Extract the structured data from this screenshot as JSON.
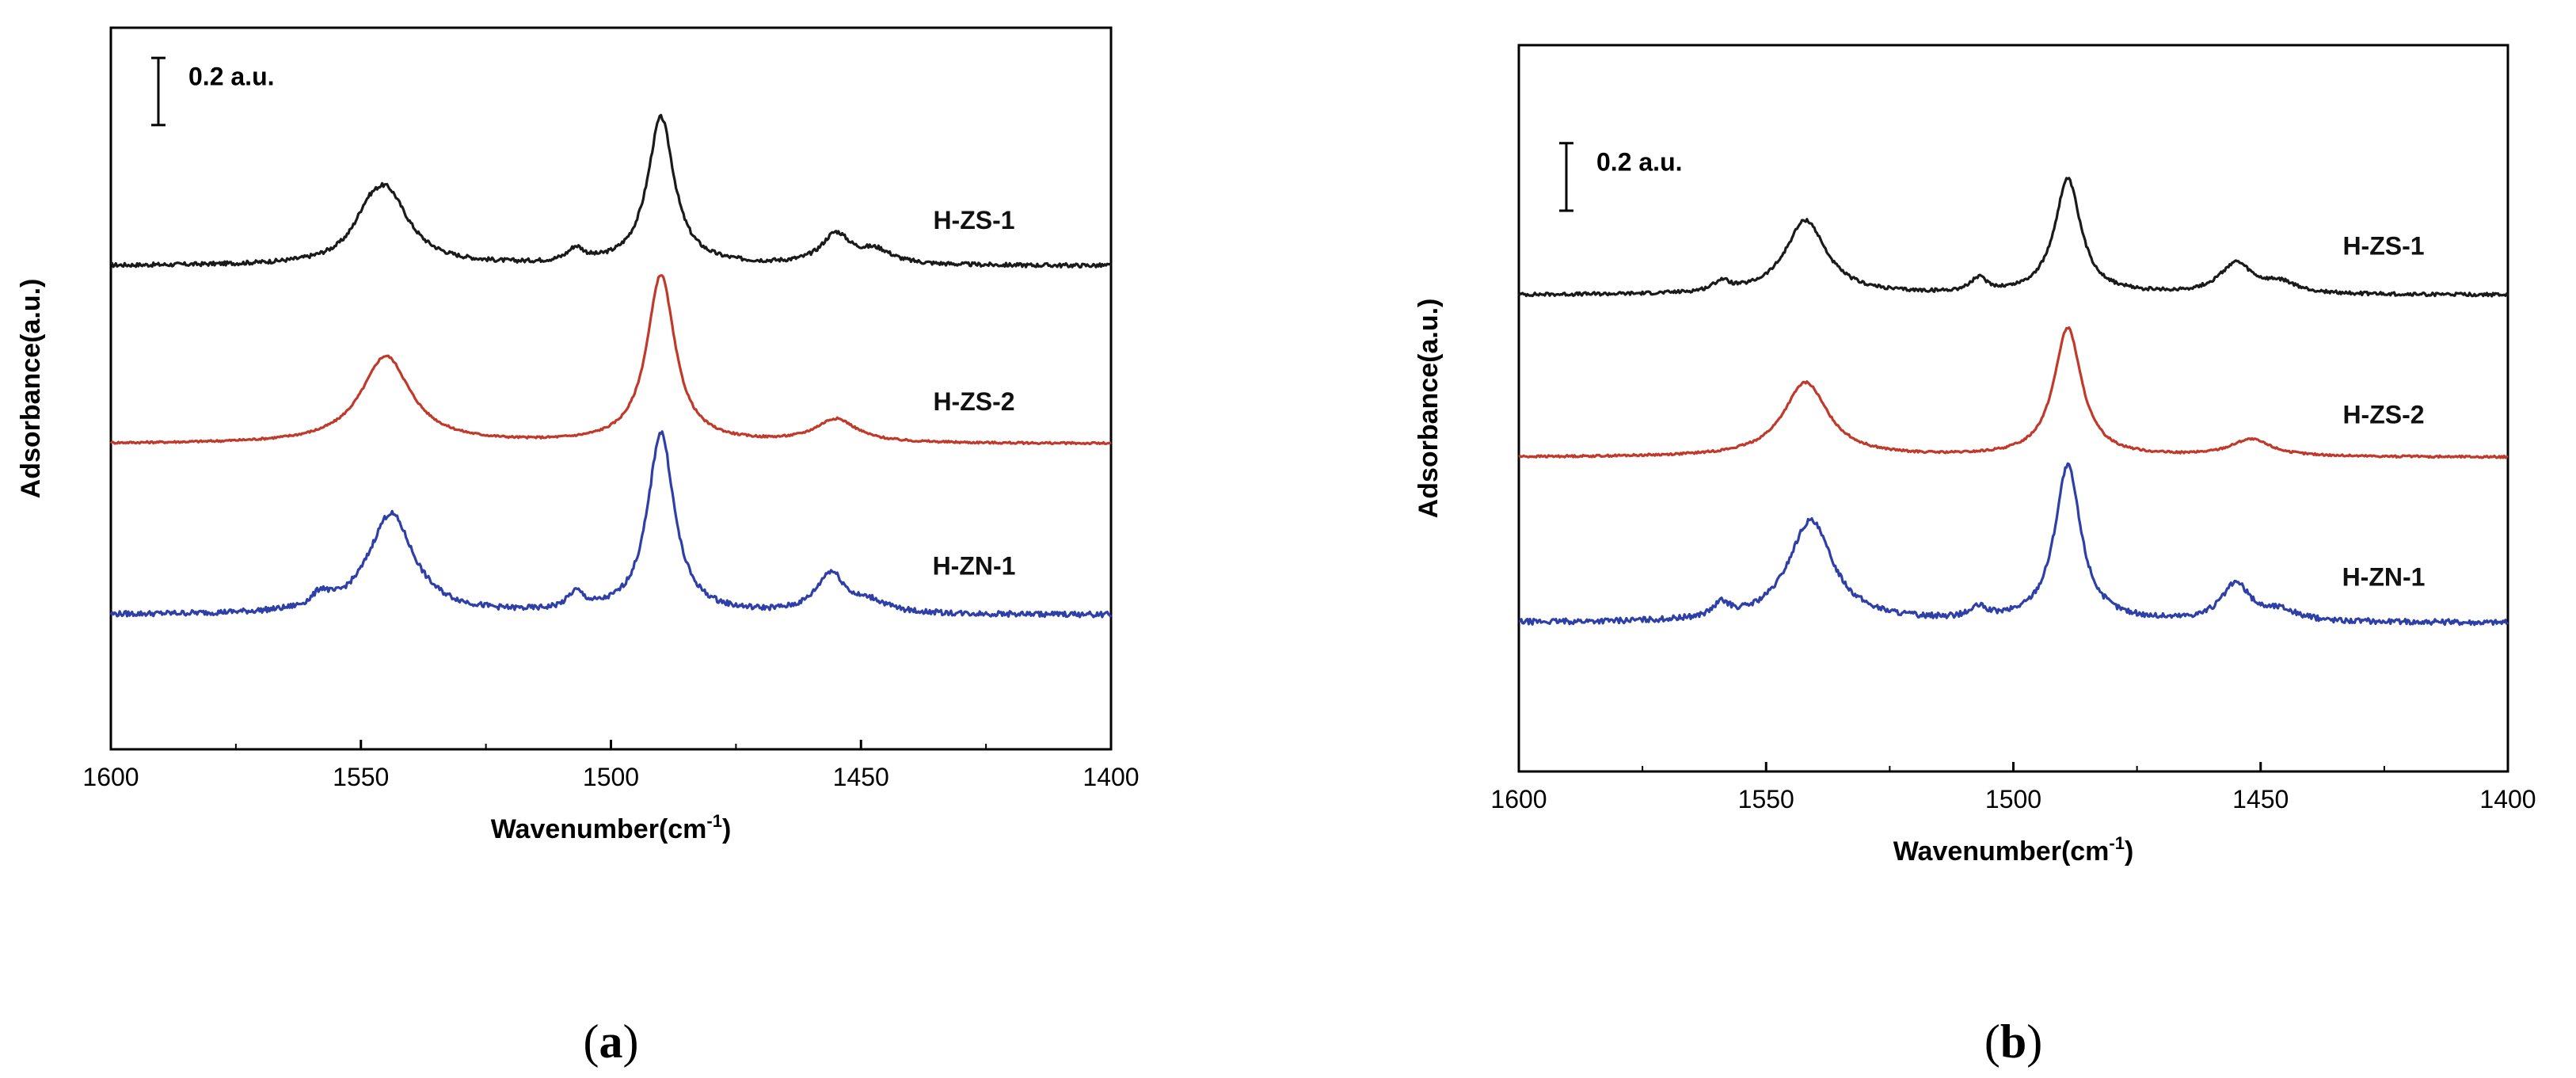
{
  "chart_data": [
    {
      "type": "line",
      "panel_label": "a",
      "caption_prefix": "(",
      "caption_suffix": ")",
      "xlabel_main": "Wavenumber(cm",
      "xlabel_sup": "-1",
      "xlabel_close": ")",
      "ylabel": "Adsorbance(a.u.)",
      "xlim": [
        1600,
        1400
      ],
      "x_ticks": [
        1600,
        1550,
        1500,
        1450,
        1400
      ],
      "x_tick_labels": [
        "1600",
        "1550",
        "1500",
        "1450",
        "1400"
      ],
      "ylim": [
        0,
        2.15
      ],
      "scale_bar": {
        "label": "0.2 a.u.",
        "size": 0.2,
        "y_bottom": 1.86
      },
      "series": [
        {
          "name": "H-ZS-1",
          "color": "#1a1a1a",
          "baseline": 1.44,
          "label_y": 1.55,
          "peaks": [
            {
              "center": 1545,
              "height": 0.22,
              "width": 5.5
            },
            {
              "center": 1549,
              "height": 0.05,
              "width": 3
            },
            {
              "center": 1507,
              "height": 0.04,
              "width": 2
            },
            {
              "center": 1490,
              "height": 0.44,
              "width": 3.2
            },
            {
              "center": 1455,
              "height": 0.09,
              "width": 3.5
            },
            {
              "center": 1447,
              "height": 0.04,
              "width": 4
            }
          ],
          "noise": 0.006
        },
        {
          "name": "H-ZS-2",
          "color": "#c0392b",
          "baseline": 0.91,
          "label_y": 1.01,
          "peaks": [
            {
              "center": 1545,
              "height": 0.26,
              "width": 6
            },
            {
              "center": 1490,
              "height": 0.5,
              "width": 3.4
            },
            {
              "center": 1455,
              "height": 0.07,
              "width": 5
            }
          ],
          "noise": 0.003
        },
        {
          "name": "H-ZN-1",
          "color": "#2e3fa8",
          "baseline": 0.4,
          "label_y": 0.52,
          "peaks": [
            {
              "center": 1544,
              "height": 0.3,
              "width": 5.5
            },
            {
              "center": 1558,
              "height": 0.04,
              "width": 2
            },
            {
              "center": 1507,
              "height": 0.05,
              "width": 2
            },
            {
              "center": 1490,
              "height": 0.54,
              "width": 3.2
            },
            {
              "center": 1456,
              "height": 0.12,
              "width": 3.5
            },
            {
              "center": 1448,
              "height": 0.03,
              "width": 4
            }
          ],
          "noise": 0.008
        }
      ]
    },
    {
      "type": "line",
      "panel_label": "b",
      "caption_prefix": "(",
      "caption_suffix": ")",
      "xlabel_main": "Wavenumber(cm",
      "xlabel_sup": "-1",
      "xlabel_close": ")",
      "ylabel": "Adsorbance(a.u.)",
      "xlim": [
        1600,
        1400
      ],
      "x_ticks": [
        1600,
        1550,
        1500,
        1450,
        1400
      ],
      "x_tick_labels": [
        "1600",
        "1550",
        "1500",
        "1450",
        "1400"
      ],
      "ylim": [
        0,
        2.15
      ],
      "scale_bar": {
        "label": "0.2 a.u.",
        "size": 0.2,
        "y_bottom": 1.66
      },
      "series": [
        {
          "name": "H-ZS-1",
          "color": "#1a1a1a",
          "baseline": 1.41,
          "label_y": 1.53,
          "peaks": [
            {
              "center": 1542,
              "height": 0.22,
              "width": 5
            },
            {
              "center": 1559,
              "height": 0.03,
              "width": 2
            },
            {
              "center": 1507,
              "height": 0.04,
              "width": 2
            },
            {
              "center": 1489,
              "height": 0.34,
              "width": 3.2
            },
            {
              "center": 1455,
              "height": 0.09,
              "width": 4
            },
            {
              "center": 1446,
              "height": 0.03,
              "width": 4
            }
          ],
          "noise": 0.005
        },
        {
          "name": "H-ZS-2",
          "color": "#c0392b",
          "baseline": 0.93,
          "label_y": 1.03,
          "peaks": [
            {
              "center": 1542,
              "height": 0.22,
              "width": 5.5
            },
            {
              "center": 1489,
              "height": 0.38,
              "width": 3.4
            },
            {
              "center": 1452,
              "height": 0.05,
              "width": 5
            }
          ],
          "noise": 0.003
        },
        {
          "name": "H-ZN-1",
          "color": "#2e3fa8",
          "baseline": 0.44,
          "label_y": 0.55,
          "peaks": [
            {
              "center": 1541,
              "height": 0.3,
              "width": 5.5
            },
            {
              "center": 1559,
              "height": 0.04,
              "width": 2
            },
            {
              "center": 1507,
              "height": 0.03,
              "width": 2
            },
            {
              "center": 1489,
              "height": 0.46,
              "width": 3.2
            },
            {
              "center": 1455,
              "height": 0.11,
              "width": 3.5
            },
            {
              "center": 1446,
              "height": 0.03,
              "width": 4
            }
          ],
          "noise": 0.008
        }
      ]
    }
  ]
}
